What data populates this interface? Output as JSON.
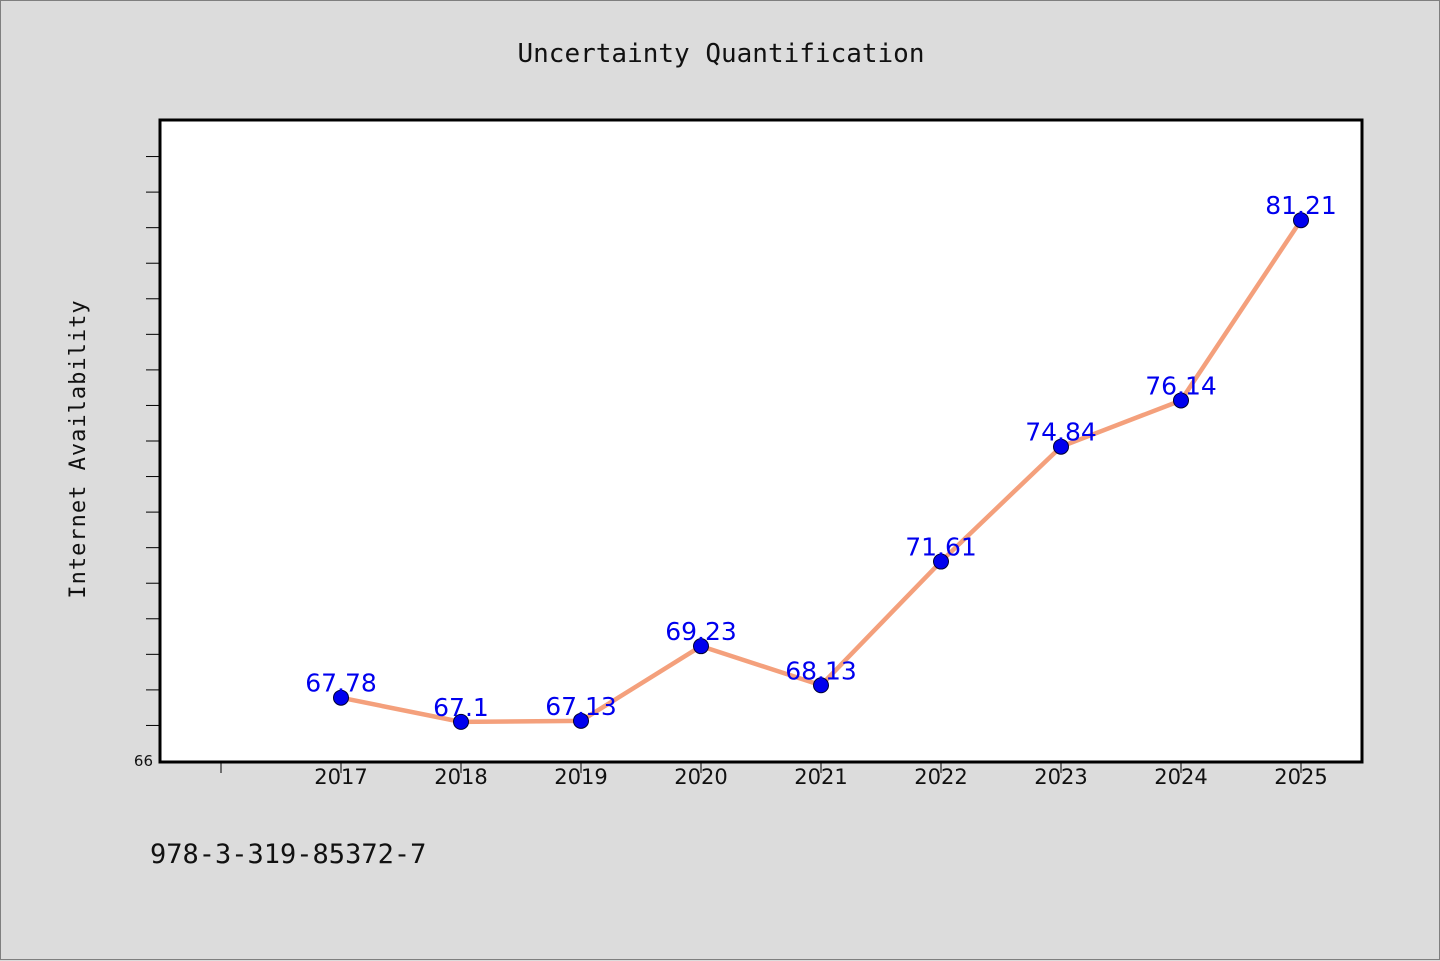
{
  "chart_data": {
    "type": "line",
    "title": "Uncertainty Quantification",
    "ylabel": "Internet Availability",
    "xlabel": "",
    "categories": [
      "2017",
      "2018",
      "2019",
      "2020",
      "2021",
      "2022",
      "2023",
      "2024",
      "2025"
    ],
    "series": [
      {
        "values": [
          67.78,
          67.1,
          67.13,
          69.23,
          68.13,
          71.61,
          74.84,
          76.14,
          81.21
        ],
        "labels": [
          "67.78",
          "67.1",
          "67.13",
          "69.23",
          "68.13",
          "71.61",
          "74.84",
          "76.14",
          "81.21"
        ],
        "line_color": "#f4a07c",
        "marker_color": "#0000ee"
      }
    ],
    "y_tick_labels": [
      "66"
    ],
    "ylim": [
      66,
      84
    ],
    "grid": false,
    "legend": "none"
  },
  "footer": {
    "isbn": "978-3-319-85372-7"
  },
  "colors": {
    "background": "#dcdcdc",
    "plot_background": "#ffffff",
    "line": "#f4a07c",
    "marker": "#0000ee",
    "data_label": "#0000ee"
  }
}
